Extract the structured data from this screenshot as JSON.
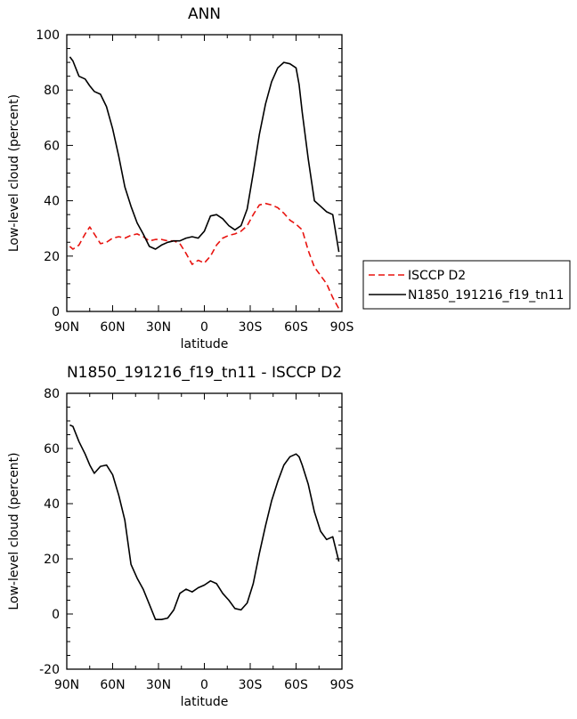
{
  "chart_data": [
    {
      "type": "line",
      "title": "ANN",
      "xlabel": "latitude",
      "ylabel": "Low-level cloud (percent)",
      "xlim": [
        90,
        -90
      ],
      "ylim": [
        0,
        100
      ],
      "x_ticks": [
        {
          "value": 90,
          "label": "90N"
        },
        {
          "value": 60,
          "label": "60N"
        },
        {
          "value": 30,
          "label": "30N"
        },
        {
          "value": 0,
          "label": "0"
        },
        {
          "value": -30,
          "label": "30S"
        },
        {
          "value": -60,
          "label": "60S"
        },
        {
          "value": -90,
          "label": "90S"
        }
      ],
      "y_ticks": [
        0,
        20,
        40,
        60,
        80,
        100
      ],
      "legend": {
        "placement": "right"
      },
      "series": [
        {
          "name": "ISCCP D2",
          "color": "#e8130f",
          "dash": "dashed",
          "x": [
            88,
            86,
            82,
            78,
            75,
            72,
            68,
            64,
            60,
            56,
            52,
            48,
            44,
            40,
            36,
            32,
            28,
            24,
            20,
            16,
            12,
            8,
            4,
            0,
            -4,
            -8,
            -12,
            -16,
            -20,
            -24,
            -28,
            -32,
            -36,
            -40,
            -44,
            -48,
            -52,
            -56,
            -60,
            -64,
            -68,
            -72,
            -76,
            -80,
            -84,
            -88
          ],
          "y": [
            23.5,
            22.5,
            24,
            28,
            30.5,
            28,
            24.5,
            25,
            26.5,
            27,
            26.5,
            27.5,
            28,
            27,
            25.5,
            26,
            26,
            25.5,
            25.5,
            24.5,
            21,
            17,
            18.5,
            17.5,
            20,
            24,
            26.5,
            27.5,
            28,
            29,
            31,
            35,
            38.5,
            39,
            38.5,
            37.5,
            35.5,
            33,
            31.5,
            29.5,
            22,
            16,
            13,
            10,
            5,
            1
          ]
        },
        {
          "name": "N1850_191216_f19_tn11",
          "color": "#000000",
          "dash": "solid",
          "x": [
            88,
            86,
            82,
            78,
            75,
            72,
            68,
            64,
            60,
            56,
            52,
            48,
            44,
            40,
            36,
            32,
            28,
            24,
            20,
            16,
            12,
            8,
            4,
            0,
            -4,
            -8,
            -12,
            -16,
            -20,
            -24,
            -28,
            -32,
            -36,
            -40,
            -44,
            -48,
            -52,
            -56,
            -60,
            -62,
            -64,
            -68,
            -72,
            -76,
            -80,
            -84,
            -88
          ],
          "y": [
            92,
            90.5,
            85,
            84,
            81.5,
            79.5,
            78.5,
            74,
            66,
            56,
            45,
            38,
            32,
            28,
            23.5,
            22.5,
            24,
            25,
            25.5,
            25.5,
            26.5,
            27,
            26.5,
            29,
            34.5,
            35,
            33.5,
            31,
            29.5,
            31,
            37,
            50,
            64,
            75,
            83,
            88,
            90,
            89.5,
            88,
            82,
            72,
            55,
            40,
            38,
            36,
            35,
            21.5
          ]
        }
      ]
    },
    {
      "type": "line",
      "title": "N1850_191216_f19_tn11 - ISCCP D2",
      "xlabel": "latitude",
      "ylabel": "Low-level cloud (percent)",
      "xlim": [
        90,
        -90
      ],
      "ylim": [
        -20,
        80
      ],
      "x_ticks": [
        {
          "value": 90,
          "label": "90N"
        },
        {
          "value": 60,
          "label": "60N"
        },
        {
          "value": 30,
          "label": "30N"
        },
        {
          "value": 0,
          "label": "0"
        },
        {
          "value": -30,
          "label": "30S"
        },
        {
          "value": -60,
          "label": "60S"
        },
        {
          "value": -90,
          "label": "90S"
        }
      ],
      "y_ticks": [
        -20,
        0,
        20,
        40,
        60,
        80
      ],
      "series": [
        {
          "color": "#000000",
          "dash": "solid",
          "x": [
            88,
            86,
            82,
            78,
            75,
            72,
            68,
            64,
            60,
            56,
            52,
            48,
            44,
            40,
            36,
            32,
            28,
            24,
            20,
            16,
            12,
            8,
            4,
            0,
            -4,
            -8,
            -12,
            -16,
            -20,
            -24,
            -28,
            -32,
            -36,
            -40,
            -44,
            -48,
            -52,
            -56,
            -60,
            -62,
            -64,
            -68,
            -72,
            -76,
            -80,
            -84,
            -88
          ],
          "y": [
            68.5,
            68,
            62.5,
            58,
            54,
            51,
            53.5,
            54,
            50.5,
            43,
            34,
            18,
            13,
            9,
            3.5,
            -2,
            -2,
            -1.5,
            1.5,
            7.5,
            9,
            8,
            9.5,
            10.5,
            12,
            11,
            7.5,
            5,
            2,
            1.5,
            4,
            11,
            22,
            32,
            41,
            48,
            54,
            57,
            58,
            57,
            54,
            47,
            37,
            30,
            27,
            28,
            19
          ]
        }
      ]
    }
  ]
}
